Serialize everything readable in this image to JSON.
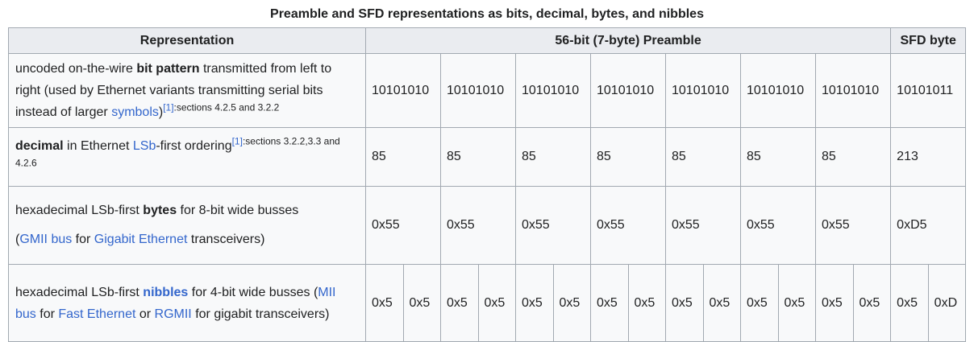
{
  "caption": "Preamble and SFD representations as bits, decimal, bytes, and nibbles",
  "headers": {
    "representation": "Representation",
    "preamble": "56-bit (7-byte) Preamble",
    "sfd": "SFD byte"
  },
  "rows": {
    "bits": {
      "p1": "uncoded on-the-wire ",
      "bold": "bit pattern",
      "p2": " transmitted from left to right (used by Ethernet variants transmitting serial bits instead of larger ",
      "link": "symbols",
      "p3": ")",
      "ref": "[1]",
      "refnote": ":sections 4.2.5 and 3.2.2",
      "values": [
        "10101010",
        "10101010",
        "10101010",
        "10101010",
        "10101010",
        "10101010",
        "10101010"
      ],
      "sfd": "10101011"
    },
    "decimal": {
      "bold": "decimal",
      "p1": " in Ethernet ",
      "link": "LSb",
      "p2": "-first ordering",
      "ref": "[1]",
      "refnote": ":sections 3.2.2,3.3 and 4.2.6",
      "values": [
        "85",
        "85",
        "85",
        "85",
        "85",
        "85",
        "85"
      ],
      "sfd": "213"
    },
    "bytes": {
      "p1": "hexadecimal LSb-first ",
      "bold": "bytes",
      "p2": " for 8-bit wide busses",
      "p3": "(",
      "link1": "GMII bus",
      "p4": " for ",
      "link2": "Gigabit Ethernet",
      "p5": " transceivers)",
      "values": [
        "0x55",
        "0x55",
        "0x55",
        "0x55",
        "0x55",
        "0x55",
        "0x55"
      ],
      "sfd": "0xD5"
    },
    "nibbles": {
      "p1": "hexadecimal LSb-first ",
      "link_bold": "nibbles",
      "p2": " for 4-bit wide busses (",
      "link1": "MII bus",
      "p3": " for ",
      "link2": "Fast Ethernet",
      "p4": " or ",
      "link3": "RGMII",
      "p5": " for gigabit transceivers)",
      "values": [
        "0x5",
        "0x5",
        "0x5",
        "0x5",
        "0x5",
        "0x5",
        "0x5",
        "0x5",
        "0x5",
        "0x5",
        "0x5",
        "0x5",
        "0x5",
        "0x5"
      ],
      "sfd": [
        "0x5",
        "0xD"
      ]
    }
  },
  "colors": {
    "link": "#3366cc",
    "header_bg": "#eaecf0",
    "cell_bg": "#f8f9fa",
    "border": "#a2a9b1"
  }
}
